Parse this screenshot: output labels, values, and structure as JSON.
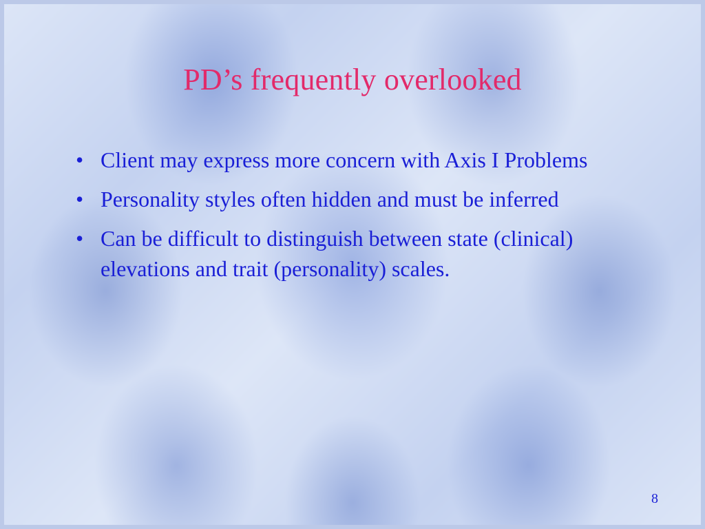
{
  "slide": {
    "title": "PD’s frequently overlooked",
    "bullets": [
      "Client may express more concern with Axis I Problems",
      "Personality styles often hidden and must be inferred",
      "Can be difficult to distinguish between state (clinical) elevations and trait (personality) scales."
    ],
    "page_number": "8"
  },
  "style": {
    "title_color": "#e22a6a",
    "body_color": "#1a1fd6",
    "page_number_color": "#1a1fd6",
    "title_fontsize": 44,
    "body_fontsize": 32,
    "page_number_fontsize": 20,
    "background_base": "#dde6f7",
    "background_accent": "#8aa4dc",
    "frame_color": "#bcc9e8"
  }
}
